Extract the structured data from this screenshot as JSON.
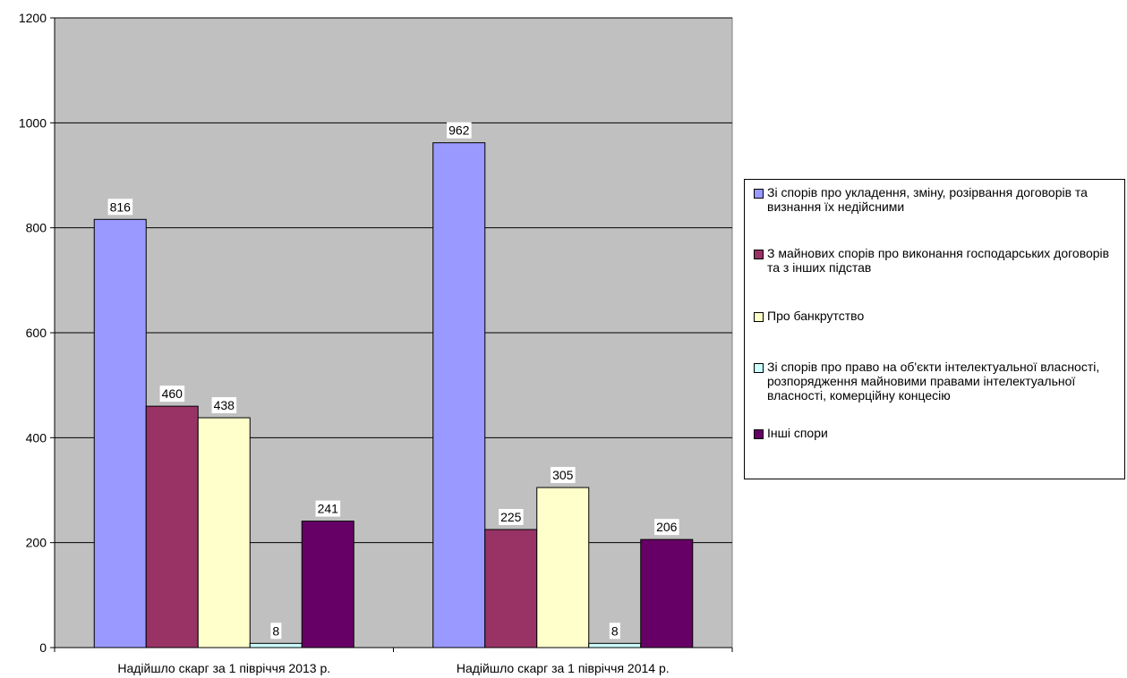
{
  "chart_data": {
    "type": "bar",
    "categories": [
      "Надійшло скарг за 1 півріччя 2013 р.",
      "Надійшло скарг за 1 півріччя 2014 р."
    ],
    "series": [
      {
        "name": "Зі спорів про укладення, зміну, розірвання договорів та визнання їх недійсними",
        "color": "#9999FF",
        "values": [
          816,
          962
        ]
      },
      {
        "name": "З майнових спорів про виконання господарських договорів та з інших підстав",
        "color": "#993366",
        "values": [
          460,
          225
        ]
      },
      {
        "name": "Про банкрутство",
        "color": "#FFFFCC",
        "values": [
          438,
          305
        ]
      },
      {
        "name": "Зі спорів про право на об'єкти інтелектуальної власності, розпорядження майновими правами інтелектуальної власності, комерційну концесію",
        "color": "#CCFFFF",
        "values": [
          8,
          8
        ]
      },
      {
        "name": "Інші спори",
        "color": "#660066",
        "values": [
          241,
          206
        ]
      }
    ],
    "ylim": [
      0,
      1200
    ],
    "yticks": [
      0,
      200,
      400,
      600,
      800,
      1000,
      1200
    ],
    "grid": true,
    "plot_background": "#C0C0C0",
    "legend_position": "right"
  }
}
